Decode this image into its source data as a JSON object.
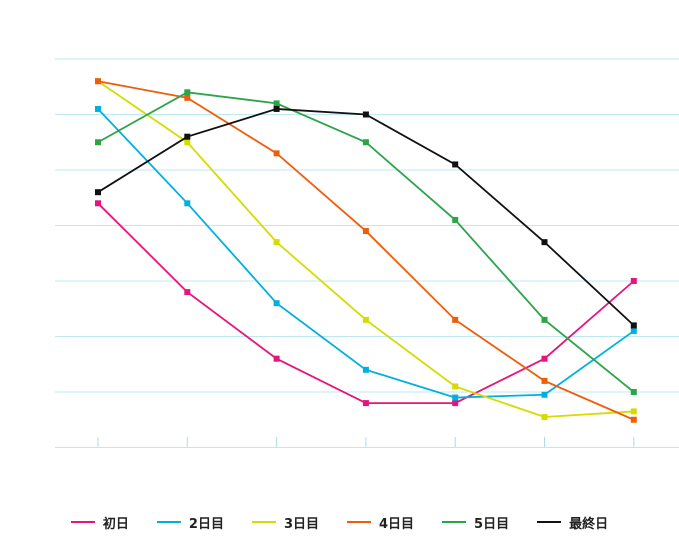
{
  "chart_data": {
    "type": "line",
    "title": "",
    "xlabel": "",
    "ylabel": "",
    "categories": [
      "",
      "",
      "",
      "",
      "",
      "",
      ""
    ],
    "ylim": [
      0,
      7
    ],
    "grid": true,
    "legend_position": "bottom",
    "series": [
      {
        "name": "初日",
        "color": "#e5147f",
        "values": [
          4.4,
          2.8,
          1.6,
          0.8,
          0.8,
          1.6,
          3.0
        ]
      },
      {
        "name": "2日目",
        "color": "#00b0e0",
        "values": [
          6.1,
          4.4,
          2.6,
          1.4,
          0.9,
          0.95,
          2.1
        ]
      },
      {
        "name": "3日目",
        "color": "#d4dc00",
        "values": [
          6.6,
          5.5,
          3.7,
          2.3,
          1.1,
          0.55,
          0.65
        ]
      },
      {
        "name": "4日目",
        "color": "#ef5d0b",
        "values": [
          6.6,
          6.3,
          5.3,
          3.9,
          2.3,
          1.2,
          0.5
        ]
      },
      {
        "name": "5日目",
        "color": "#2ea44a",
        "values": [
          5.5,
          6.4,
          6.2,
          5.5,
          4.1,
          2.3,
          1.0
        ]
      },
      {
        "name": "最終日",
        "color": "#111111",
        "values": [
          4.6,
          5.6,
          6.1,
          6.0,
          5.1,
          3.7,
          2.2
        ]
      }
    ]
  }
}
